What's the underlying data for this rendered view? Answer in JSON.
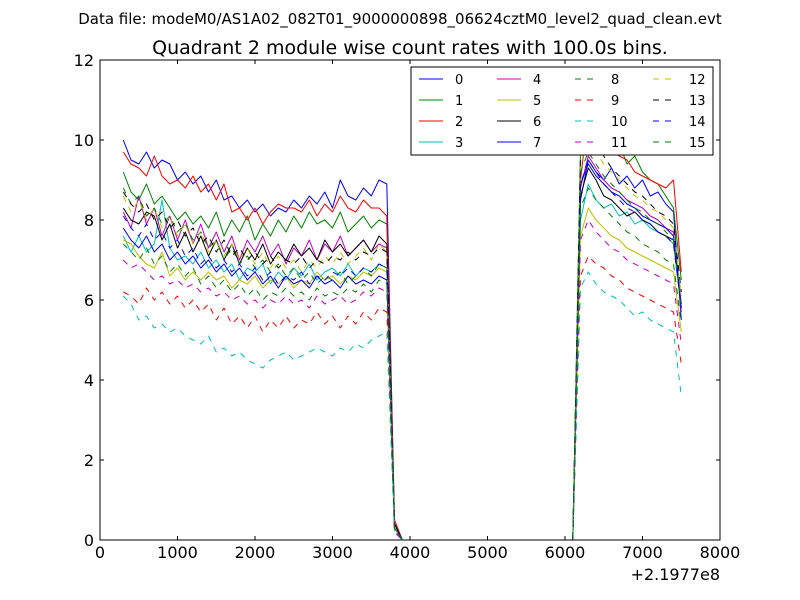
{
  "chart_data": {
    "type": "line",
    "suptitle": "Data file: modeM0/AS1A02_082T01_9000000898_06624cztM0_level2_quad_clean.evt",
    "title": "Quadrant 2 module wise count rates with 100.0s bins.",
    "xlabel": "",
    "ylabel": "",
    "xlim": [
      0,
      8000
    ],
    "ylim": [
      0,
      12
    ],
    "x_ticks": [
      0,
      1000,
      2000,
      3000,
      4000,
      5000,
      6000,
      7000,
      8000
    ],
    "x_tick_labels": [
      "0",
      "1000",
      "2000",
      "3000",
      "4000",
      "5000",
      "6000",
      "7000",
      "8000"
    ],
    "y_ticks": [
      0,
      2,
      4,
      6,
      8,
      10,
      12
    ],
    "y_tick_labels": [
      "0",
      "2",
      "4",
      "6",
      "8",
      "10",
      "12"
    ],
    "x_offset_label": "+2.1977e8",
    "legend_position": "top-right",
    "legend_columns": 4,
    "x": [
      300,
      400,
      500,
      600,
      700,
      800,
      900,
      1000,
      1100,
      1200,
      1300,
      1400,
      1500,
      1600,
      1700,
      1800,
      1900,
      2000,
      2100,
      2200,
      2300,
      2400,
      2500,
      2600,
      2700,
      2800,
      2900,
      3000,
      3100,
      3200,
      3300,
      3400,
      3500,
      3600,
      3700,
      3800,
      3900,
      4000,
      4100,
      6100,
      6200,
      6300,
      6400,
      6500,
      6600,
      6700,
      6800,
      6900,
      7000,
      7100,
      7200,
      7300,
      7400,
      7500
    ],
    "series": [
      {
        "name": "0",
        "color": "#0000ff",
        "dash": "solid",
        "values": [
          10.0,
          9.5,
          9.4,
          9.7,
          9.3,
          9.5,
          9.4,
          9.0,
          9.2,
          8.9,
          9.1,
          8.7,
          9.0,
          8.5,
          8.6,
          8.3,
          8.5,
          8.2,
          8.4,
          8.1,
          8.3,
          8.2,
          8.5,
          8.3,
          8.6,
          8.4,
          8.7,
          8.3,
          9.0,
          8.6,
          8.5,
          8.8,
          8.6,
          9.0,
          8.9,
          0.5,
          0.0,
          0.0,
          0.0,
          0.0,
          8.5,
          9.5,
          9.2,
          9.0,
          9.3,
          8.9,
          9.1,
          8.8,
          9.0,
          8.6,
          8.7,
          8.4,
          8.2,
          5.5
        ]
      },
      {
        "name": "1",
        "color": "#008000",
        "dash": "solid",
        "values": [
          9.2,
          8.7,
          8.5,
          8.9,
          8.4,
          8.6,
          8.3,
          8.0,
          8.2,
          7.9,
          8.1,
          7.8,
          8.2,
          7.6,
          8.0,
          7.7,
          8.1,
          7.5,
          7.9,
          7.6,
          8.0,
          7.7,
          8.1,
          7.8,
          8.2,
          7.9,
          8.0,
          7.8,
          8.2,
          7.7,
          7.9,
          8.1,
          7.8,
          8.0,
          7.9,
          0.4,
          0.0,
          0.0,
          0.0,
          0.0,
          9.8,
          10.3,
          9.9,
          10.1,
          9.7,
          9.9,
          9.4,
          9.6,
          9.2,
          9.0,
          8.9,
          8.6,
          8.3,
          6.5
        ]
      },
      {
        "name": "2",
        "color": "#ff0000",
        "dash": "solid",
        "values": [
          9.7,
          9.4,
          9.3,
          9.1,
          9.6,
          9.1,
          8.9,
          9.0,
          8.8,
          9.1,
          8.7,
          8.9,
          8.5,
          8.9,
          8.2,
          8.3,
          8.0,
          8.3,
          7.9,
          8.2,
          8.4,
          8.3,
          8.3,
          8.2,
          8.5,
          8.1,
          8.4,
          8.2,
          8.6,
          8.3,
          8.2,
          8.5,
          8.3,
          8.3,
          8.1,
          0.5,
          0.0,
          0.0,
          0.0,
          0.0,
          9.0,
          10.7,
          10.4,
          10.0,
          9.8,
          9.6,
          9.5,
          9.2,
          9.1,
          9.0,
          8.9,
          8.8,
          9.0,
          6.7
        ]
      },
      {
        "name": "3",
        "color": "#00bfbf",
        "dash": "solid",
        "values": [
          7.6,
          7.2,
          7.6,
          7.2,
          7.4,
          8.5,
          7.3,
          7.0,
          7.1,
          6.9,
          7.2,
          6.8,
          7.0,
          6.7,
          6.9,
          6.5,
          6.8,
          6.7,
          6.9,
          6.4,
          6.7,
          6.5,
          6.8,
          6.6,
          6.9,
          6.5,
          6.7,
          6.8,
          6.6,
          6.9,
          6.6,
          6.8,
          6.7,
          6.9,
          6.8,
          0.3,
          0.0,
          0.0,
          0.0,
          0.0,
          8.0,
          8.9,
          8.5,
          8.3,
          8.4,
          8.1,
          8.2,
          7.9,
          8.0,
          7.8,
          7.7,
          7.6,
          7.4,
          5.8
        ]
      },
      {
        "name": "4",
        "color": "#bf00bf",
        "dash": "solid",
        "values": [
          8.2,
          7.8,
          8.6,
          7.9,
          8.3,
          7.6,
          8.1,
          7.5,
          8.0,
          7.4,
          7.9,
          7.3,
          7.7,
          7.2,
          7.6,
          7.0,
          7.5,
          7.2,
          7.6,
          7.1,
          7.4,
          6.9,
          7.3,
          7.1,
          7.5,
          7.0,
          7.4,
          7.2,
          7.6,
          7.1,
          7.3,
          7.5,
          7.2,
          7.4,
          7.3,
          0.4,
          0.0,
          0.0,
          0.0,
          0.0,
          8.8,
          9.6,
          9.3,
          9.0,
          8.8,
          8.7,
          8.5,
          8.4,
          8.3,
          8.1,
          8.0,
          7.8,
          7.7,
          5.7
        ]
      },
      {
        "name": "5",
        "color": "#bfbf00",
        "dash": "solid",
        "values": [
          7.5,
          7.4,
          7.1,
          6.9,
          6.8,
          7.2,
          6.6,
          6.8,
          6.5,
          6.7,
          6.5,
          6.7,
          6.5,
          6.6,
          6.3,
          6.5,
          6.4,
          6.6,
          6.3,
          6.5,
          6.4,
          6.6,
          6.3,
          6.5,
          6.4,
          6.7,
          6.5,
          6.6,
          6.4,
          6.6,
          6.5,
          6.7,
          6.6,
          6.8,
          6.7,
          0.3,
          0.0,
          0.0,
          0.0,
          0.0,
          7.6,
          8.3,
          8.0,
          7.8,
          7.6,
          7.5,
          7.3,
          7.2,
          7.1,
          7.0,
          6.9,
          6.8,
          6.7,
          5.2
        ]
      },
      {
        "name": "6",
        "color": "#000000",
        "dash": "solid",
        "values": [
          8.3,
          8.0,
          7.9,
          8.2,
          8.1,
          7.5,
          7.9,
          7.3,
          7.7,
          7.2,
          7.6,
          7.1,
          7.5,
          7.0,
          7.4,
          6.9,
          7.3,
          7.0,
          7.4,
          6.9,
          7.2,
          7.0,
          7.4,
          7.1,
          7.3,
          7.0,
          7.5,
          7.2,
          7.4,
          7.1,
          7.3,
          7.5,
          7.2,
          7.6,
          7.4,
          0.4,
          0.0,
          0.0,
          0.0,
          0.0,
          8.6,
          9.3,
          9.0,
          8.6,
          8.5,
          8.3,
          8.1,
          8.2,
          8.0,
          7.9,
          7.7,
          7.6,
          7.5,
          5.9
        ]
      },
      {
        "name": "7",
        "color": "#0000ff",
        "dash": "solid",
        "values": [
          7.8,
          7.5,
          7.3,
          7.6,
          7.2,
          7.4,
          7.0,
          7.2,
          6.9,
          7.1,
          6.8,
          7.0,
          6.7,
          6.9,
          6.6,
          6.8,
          6.5,
          6.7,
          6.4,
          6.6,
          6.3,
          6.6,
          6.4,
          6.5,
          6.3,
          6.6,
          6.4,
          6.5,
          6.3,
          6.6,
          6.4,
          6.5,
          6.4,
          6.6,
          6.5,
          0.3,
          0.0,
          0.0,
          0.0,
          0.0,
          8.9,
          9.4,
          9.1,
          8.9,
          8.7,
          8.6,
          8.4,
          8.3,
          8.1,
          8.0,
          7.9,
          7.8,
          7.6,
          5.8
        ]
      },
      {
        "name": "8",
        "color": "#008000",
        "dash": "dashed",
        "values": [
          8.8,
          8.4,
          8.6,
          8.1,
          8.3,
          7.9,
          8.1,
          7.7,
          7.9,
          7.5,
          7.7,
          7.3,
          7.5,
          7.0,
          7.3,
          6.9,
          7.1,
          6.8,
          7.0,
          6.7,
          6.9,
          6.6,
          6.8,
          6.5,
          6.7,
          6.4,
          6.6,
          6.5,
          6.7,
          6.4,
          6.6,
          6.8,
          6.6,
          6.9,
          6.8,
          0.3,
          0.0,
          0.0,
          0.0,
          0.0,
          9.2,
          9.7,
          9.4,
          9.1,
          8.9,
          8.7,
          8.5,
          8.3,
          8.2,
          8.0,
          7.9,
          7.7,
          7.5,
          5.9
        ]
      },
      {
        "name": "9",
        "color": "#ff0000",
        "dash": "dashed",
        "values": [
          6.2,
          6.1,
          5.9,
          6.3,
          6.0,
          6.2,
          5.9,
          6.1,
          5.8,
          6.0,
          5.7,
          5.9,
          5.5,
          5.8,
          5.4,
          5.6,
          5.3,
          5.6,
          5.2,
          5.5,
          5.3,
          5.6,
          5.3,
          5.5,
          5.4,
          5.7,
          5.4,
          5.6,
          5.3,
          5.6,
          5.4,
          5.7,
          5.5,
          5.8,
          5.7,
          0.2,
          0.0,
          0.0,
          0.0,
          0.0,
          6.6,
          7.1,
          6.9,
          6.8,
          6.6,
          6.5,
          6.3,
          6.2,
          6.1,
          6.0,
          5.9,
          5.8,
          5.7,
          4.4
        ]
      },
      {
        "name": "10",
        "color": "#00bfbf",
        "dash": "dashed",
        "values": [
          6.1,
          5.9,
          5.5,
          5.6,
          5.3,
          5.4,
          5.2,
          5.3,
          5.1,
          5.0,
          4.9,
          5.1,
          4.7,
          4.8,
          4.6,
          4.7,
          4.5,
          4.4,
          4.3,
          4.5,
          4.6,
          4.7,
          4.5,
          4.6,
          4.7,
          4.8,
          4.7,
          4.6,
          4.8,
          4.7,
          4.9,
          4.8,
          5.0,
          5.1,
          5.2,
          0.2,
          0.0,
          0.0,
          0.0,
          0.0,
          6.3,
          6.7,
          6.4,
          6.2,
          6.1,
          6.0,
          5.8,
          5.6,
          5.7,
          5.5,
          5.4,
          5.3,
          5.2,
          3.6
        ]
      },
      {
        "name": "11",
        "color": "#bf00bf",
        "dash": "dashed",
        "values": [
          7.0,
          6.8,
          6.9,
          6.7,
          6.5,
          6.6,
          6.4,
          6.5,
          6.3,
          6.4,
          6.2,
          6.3,
          6.1,
          6.2,
          6.0,
          6.1,
          5.9,
          6.0,
          5.8,
          6.0,
          5.9,
          6.1,
          5.9,
          6.0,
          5.8,
          6.1,
          5.9,
          6.0,
          6.1,
          5.9,
          6.0,
          6.2,
          6.1,
          6.3,
          6.2,
          0.2,
          0.0,
          0.0,
          0.0,
          0.0,
          7.5,
          8.0,
          7.7,
          7.5,
          7.3,
          7.2,
          7.0,
          6.9,
          6.8,
          6.7,
          6.6,
          6.5,
          6.4,
          4.9
        ]
      },
      {
        "name": "12",
        "color": "#bfbf00",
        "dash": "dashed",
        "values": [
          8.6,
          8.2,
          8.5,
          8.0,
          8.3,
          7.8,
          8.1,
          7.6,
          7.9,
          7.4,
          7.7,
          7.2,
          7.5,
          7.1,
          7.4,
          7.0,
          7.3,
          6.9,
          7.2,
          6.8,
          7.1,
          6.8,
          7.0,
          6.7,
          7.0,
          6.8,
          7.1,
          6.9,
          7.2,
          6.9,
          7.1,
          7.3,
          7.0,
          7.4,
          7.2,
          0.3,
          0.0,
          0.0,
          0.0,
          0.0,
          9.4,
          10.1,
          9.7,
          9.4,
          9.2,
          9.0,
          8.8,
          8.6,
          8.5,
          8.3,
          8.2,
          8.0,
          7.8,
          6.1
        ]
      },
      {
        "name": "13",
        "color": "#000000",
        "dash": "dashed",
        "values": [
          8.7,
          8.4,
          8.2,
          8.4,
          8.0,
          8.2,
          7.8,
          8.0,
          7.6,
          7.8,
          7.4,
          7.6,
          7.2,
          7.5,
          7.1,
          7.3,
          7.0,
          7.2,
          6.9,
          7.1,
          6.8,
          7.0,
          6.9,
          7.1,
          6.8,
          7.0,
          6.9,
          7.1,
          7.0,
          7.2,
          7.0,
          7.2,
          7.1,
          7.3,
          7.2,
          0.3,
          0.0,
          0.0,
          0.0,
          0.0,
          9.6,
          10.2,
          9.9,
          9.6,
          9.3,
          9.1,
          8.9,
          8.7,
          8.6,
          8.4,
          8.2,
          8.1,
          7.9,
          6.2
        ]
      },
      {
        "name": "14",
        "color": "#0000ff",
        "dash": "dashed",
        "values": [
          8.1,
          7.8,
          7.6,
          7.9,
          7.5,
          7.7,
          7.3,
          7.5,
          7.1,
          7.3,
          6.9,
          7.1,
          6.8,
          7.0,
          6.7,
          6.9,
          6.6,
          6.8,
          6.5,
          6.7,
          6.4,
          6.6,
          6.5,
          6.7,
          6.4,
          6.6,
          6.5,
          6.7,
          6.6,
          6.8,
          6.6,
          6.8,
          6.7,
          6.9,
          6.8,
          0.3,
          0.0,
          0.0,
          0.0,
          0.0,
          8.9,
          9.5,
          9.2,
          8.9,
          8.7,
          8.5,
          8.3,
          8.2,
          8.0,
          7.9,
          7.7,
          7.6,
          7.4,
          5.8
        ]
      },
      {
        "name": "15",
        "color": "#008000",
        "dash": "dashed",
        "values": [
          7.4,
          7.2,
          7.0,
          7.3,
          6.9,
          7.1,
          6.7,
          6.9,
          6.6,
          6.8,
          6.4,
          6.6,
          6.3,
          6.5,
          6.2,
          6.4,
          6.1,
          6.3,
          6.0,
          6.2,
          6.1,
          6.3,
          6.1,
          6.2,
          6.0,
          6.3,
          6.1,
          6.2,
          6.1,
          6.3,
          6.2,
          6.4,
          6.2,
          6.5,
          6.4,
          0.3,
          0.0,
          0.0,
          0.0,
          0.0,
          8.3,
          8.8,
          8.5,
          8.3,
          8.1,
          7.9,
          7.7,
          7.6,
          7.4,
          7.3,
          7.2,
          7.0,
          6.9,
          5.4
        ]
      }
    ]
  }
}
